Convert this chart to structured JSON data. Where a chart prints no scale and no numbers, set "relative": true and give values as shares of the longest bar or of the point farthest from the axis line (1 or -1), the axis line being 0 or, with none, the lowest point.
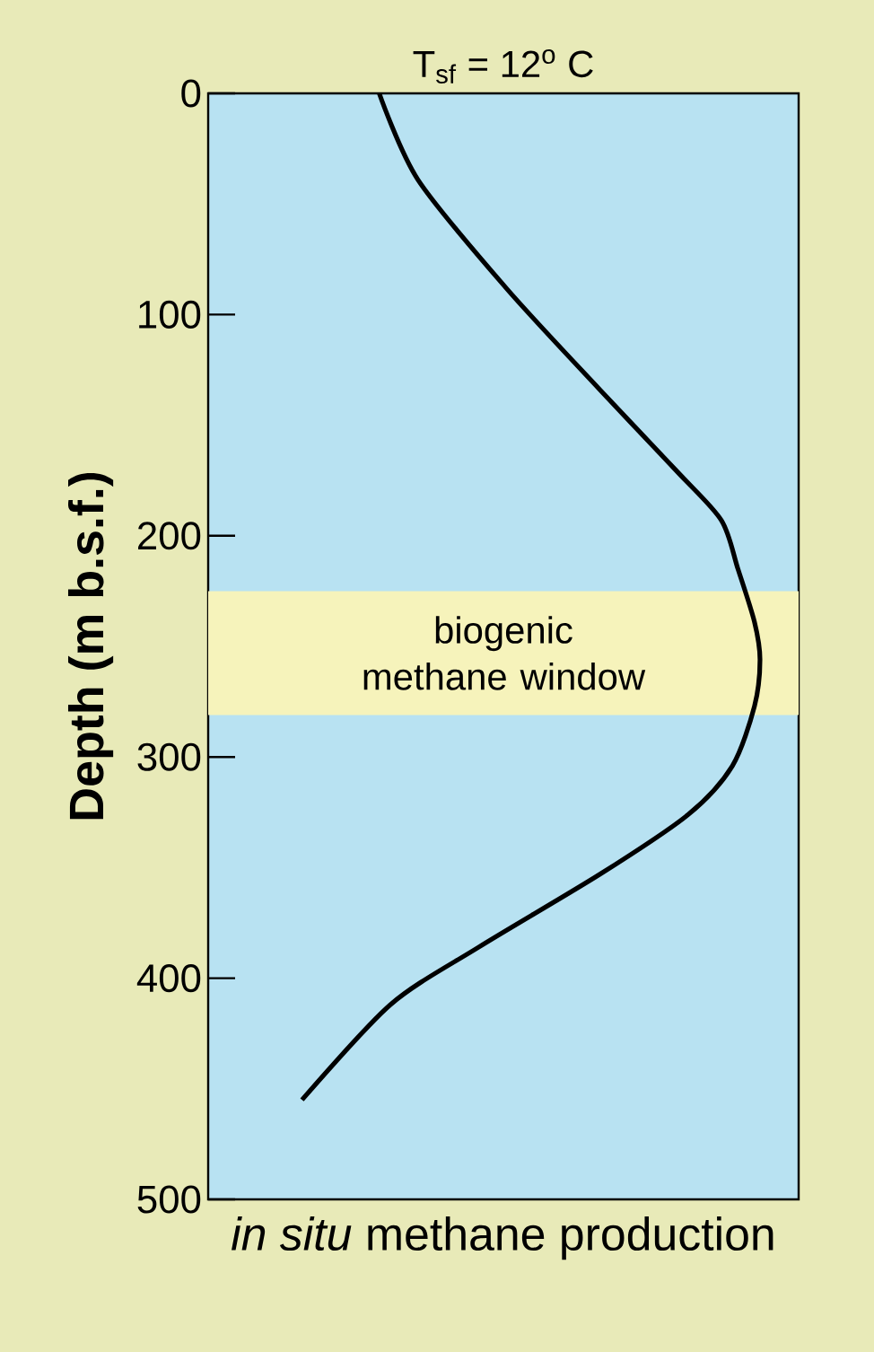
{
  "chart_data": {
    "type": "line",
    "title": "T$_{sf}$ = 12$^{o}$ C",
    "xlabel": "*in situ* methane production",
    "ylabel": "Depth (m b.s.f.)",
    "orientation": "horizontal",
    "relative": true,
    "x": [
      0,
      39,
      88,
      134,
      171,
      193,
      215,
      239,
      256,
      277,
      304,
      326,
      353,
      386,
      412,
      455
    ],
    "series": [
      {
        "color": "#000000",
        "values": [
          0.31,
          0.38,
          0.54,
          0.71,
          0.85,
          0.93,
          0.96,
          0.99,
          1.0,
          0.99,
          0.95,
          0.87,
          0.71,
          0.49,
          0.33,
          0.17
        ]
      }
    ],
    "ylim": [
      500,
      0
    ],
    "yticks": [
      0,
      100,
      200,
      300,
      400,
      500
    ],
    "bands": [
      {
        "axis": "y",
        "from": 225,
        "to": 281,
        "label": "biogenic methane window",
        "color": "#f6f3bb"
      }
    ],
    "grid": false,
    "marker": "none",
    "line_style": "solid"
  }
}
